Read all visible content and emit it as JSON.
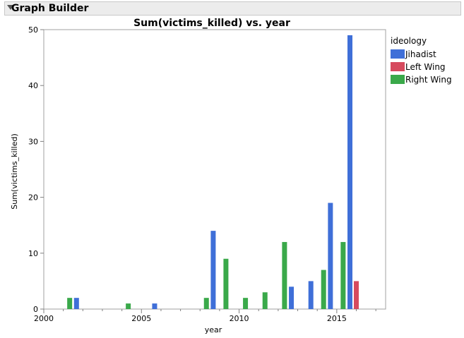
{
  "window": {
    "title": "Graph Builder"
  },
  "legend": {
    "title": "ideology",
    "items": [
      {
        "label": "Jihadist",
        "color": "#3f6fd8"
      },
      {
        "label": "Left Wing",
        "color": "#d64a5e"
      },
      {
        "label": "Right Wing",
        "color": "#3aa94a"
      }
    ]
  },
  "chart_data": {
    "type": "bar",
    "title": "Sum(victims_killed) vs. year",
    "xlabel": "year",
    "ylabel": "Sum(victims_killed)",
    "xlim": [
      2000,
      2017.5
    ],
    "ylim": [
      0,
      50
    ],
    "xticks": [
      2000,
      2005,
      2010,
      2015
    ],
    "yticks": [
      0,
      10,
      20,
      30,
      40,
      50
    ],
    "grid": false,
    "legend_position": "right",
    "series": [
      {
        "name": "Jihadist",
        "color": "#3f6fd8",
        "points": [
          [
            2002,
            2
          ],
          [
            2006,
            1
          ],
          [
            2009,
            14
          ],
          [
            2013,
            4
          ],
          [
            2014,
            5
          ],
          [
            2015,
            19
          ],
          [
            2016,
            49
          ]
        ]
      },
      {
        "name": "Left Wing",
        "color": "#d64a5e",
        "points": [
          [
            2016,
            5
          ]
        ]
      },
      {
        "name": "Right Wing",
        "color": "#3aa94a",
        "points": [
          [
            2001,
            2
          ],
          [
            2004,
            1
          ],
          [
            2008,
            2
          ],
          [
            2009,
            9
          ],
          [
            2010,
            2
          ],
          [
            2011,
            3
          ],
          [
            2012,
            12
          ],
          [
            2014,
            7
          ],
          [
            2015,
            12
          ]
        ]
      }
    ]
  }
}
